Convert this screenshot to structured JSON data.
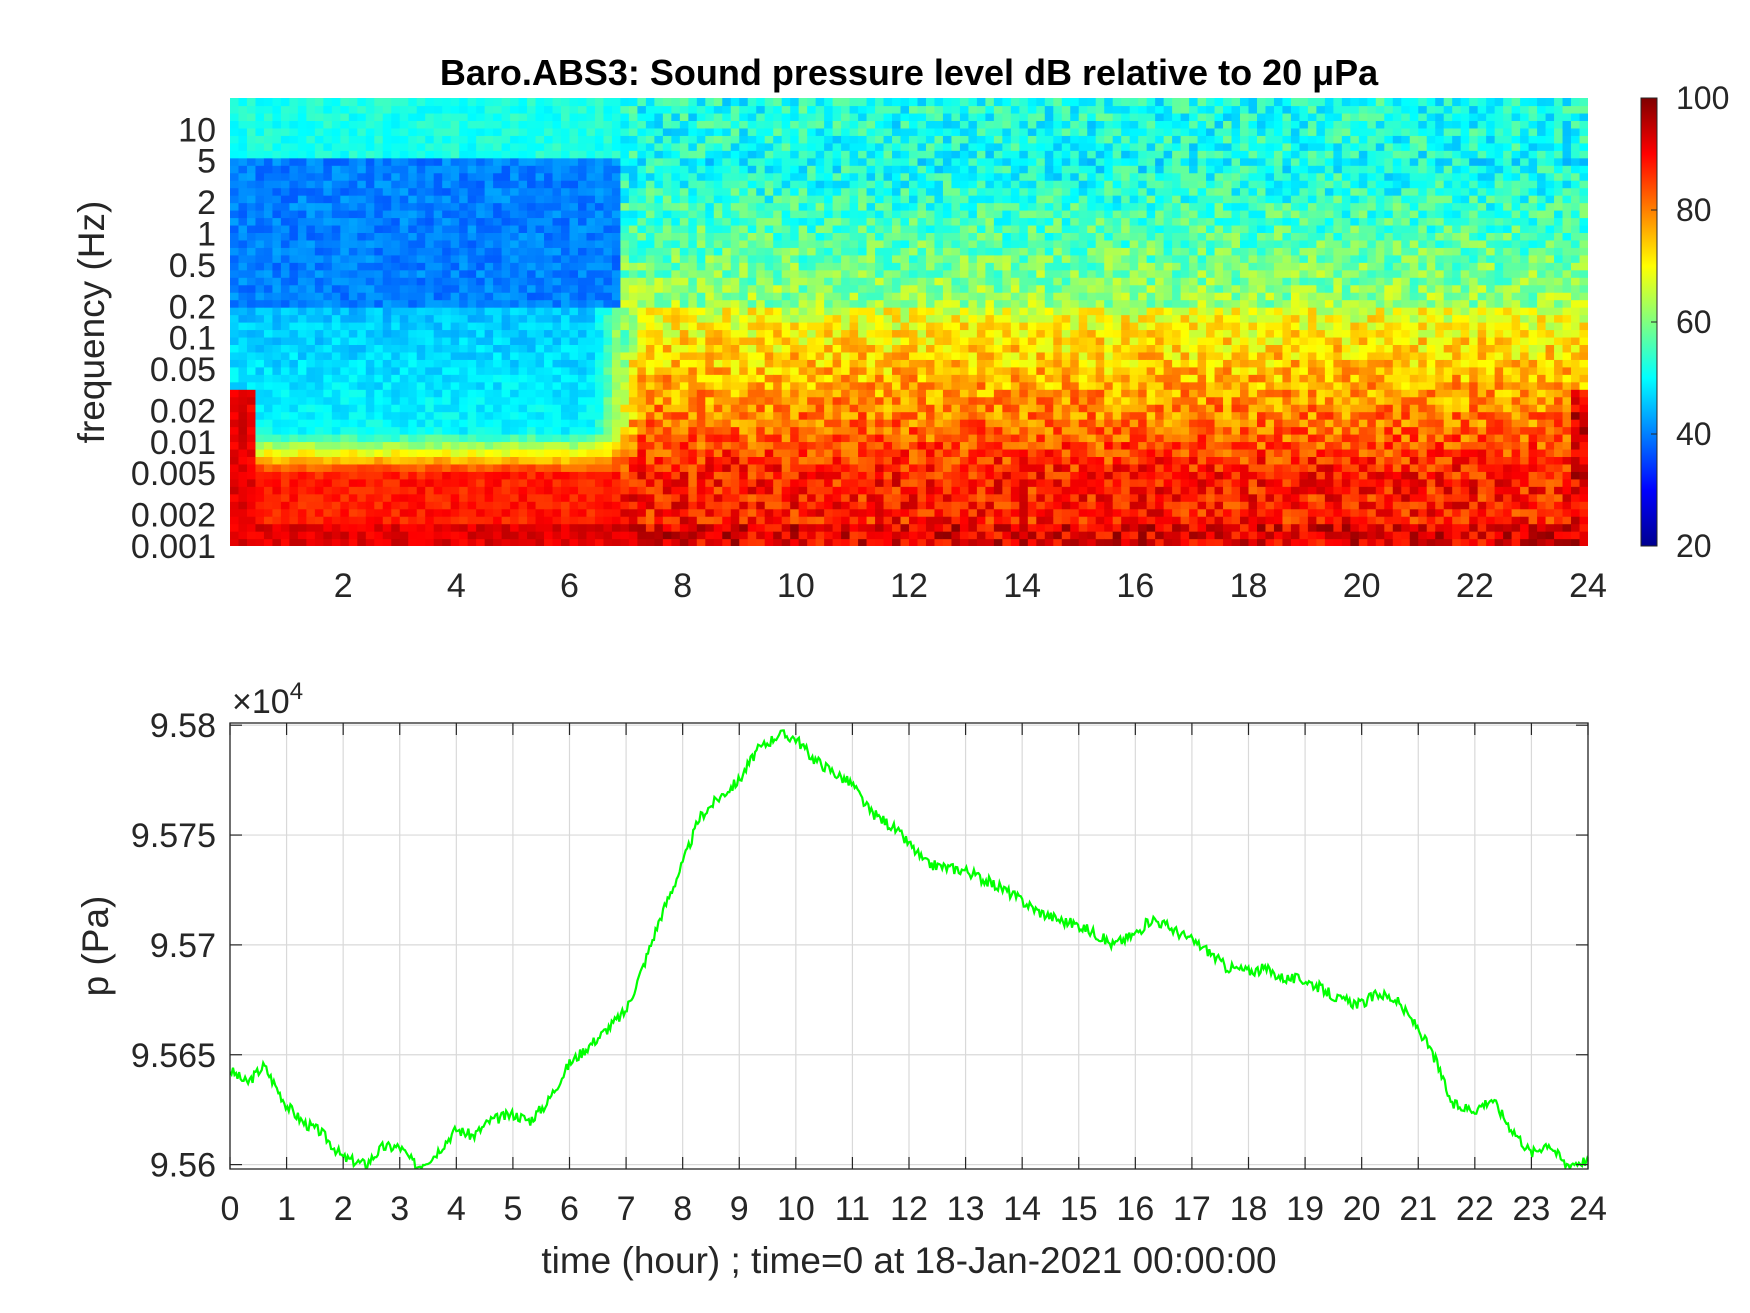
{
  "chart_data": [
    {
      "type": "heatmap",
      "title": "Baro.ABS3: Sound pressure level dB relative to 20 μPa",
      "ylabel": "frequency (Hz)",
      "xlabel": "",
      "x_range": [
        0,
        24
      ],
      "x_ticks": [
        "2",
        "4",
        "6",
        "8",
        "10",
        "12",
        "14",
        "16",
        "18",
        "20",
        "22",
        "24"
      ],
      "y_scale": "log",
      "y_range": [
        0.001,
        20
      ],
      "y_ticks": [
        "0.001",
        "0.002",
        "0.005",
        "0.01",
        "0.02",
        "0.05",
        "0.1",
        "0.2",
        "0.5",
        "1",
        "2",
        "5",
        "10"
      ],
      "colormap": "jet",
      "colorbar": {
        "range": [
          20,
          100
        ],
        "ticks": [
          "20",
          "40",
          "60",
          "80",
          "100"
        ]
      },
      "description_levels_dB": {
        "lowest_band_0.001_0.005Hz": 88,
        "mid_band_0.01_0.2Hz_hours_0_7": 50,
        "mid_band_0.01_0.2Hz_hours_7_24": 82,
        "high_band_1_5Hz_hours_0_7": 40,
        "top_band_10_20Hz": 52
      }
    },
    {
      "type": "line",
      "xlabel": "time (hour) ; time=0 at 18-Jan-2021 00:00:00",
      "ylabel": "p (Pa)",
      "y_exponent_label": "×10",
      "y_exponent_power": "4",
      "xlim": [
        0,
        24
      ],
      "ylim": [
        95598,
        95801
      ],
      "x_ticks": [
        "0",
        "1",
        "2",
        "3",
        "4",
        "5",
        "6",
        "7",
        "8",
        "9",
        "10",
        "11",
        "12",
        "13",
        "14",
        "15",
        "16",
        "17",
        "18",
        "19",
        "20",
        "21",
        "22",
        "23",
        "24"
      ],
      "y_ticks": [
        "9.56",
        "9.565",
        "9.57",
        "9.575",
        "9.58"
      ],
      "grid": true,
      "series_color": "#00ff00",
      "x": [
        0,
        0.3,
        0.6,
        1.0,
        1.3,
        1.6,
        2.0,
        2.4,
        2.7,
        3.0,
        3.3,
        3.6,
        4.0,
        4.3,
        4.6,
        5.0,
        5.3,
        5.6,
        6.0,
        6.3,
        6.6,
        7.0,
        7.3,
        7.6,
        8.0,
        8.3,
        8.6,
        9.0,
        9.3,
        9.7,
        10.0,
        10.3,
        10.7,
        11.0,
        11.3,
        11.7,
        12.0,
        12.3,
        12.7,
        13.0,
        13.3,
        13.7,
        14.0,
        14.3,
        14.7,
        15.0,
        15.3,
        15.6,
        16.0,
        16.3,
        16.6,
        17.0,
        17.3,
        17.6,
        18.0,
        18.3,
        18.6,
        19.0,
        19.3,
        19.6,
        20.0,
        20.3,
        20.6,
        21.0,
        21.3,
        21.6,
        22.0,
        22.3,
        22.6,
        23.0,
        23.3,
        23.6,
        24.0
      ],
      "y": [
        95643,
        95637,
        95645,
        95627,
        95619,
        95615,
        95603,
        95600,
        95608,
        95608,
        95599,
        95604,
        95616,
        95613,
        95620,
        95623,
        95620,
        95628,
        95646,
        95653,
        95660,
        95670,
        95690,
        95712,
        95737,
        95758,
        95766,
        95775,
        95788,
        95796,
        95794,
        95785,
        95778,
        95773,
        95761,
        95754,
        95746,
        95737,
        95735,
        95734,
        95730,
        95725,
        95720,
        95715,
        95711,
        95709,
        95705,
        95700,
        95705,
        95712,
        95708,
        95702,
        95697,
        95690,
        95688,
        95689,
        95685,
        95684,
        95680,
        95675,
        95673,
        95678,
        95675,
        95662,
        95648,
        95627,
        95625,
        95630,
        95618,
        95605,
        95610,
        95600,
        95602
      ]
    }
  ]
}
